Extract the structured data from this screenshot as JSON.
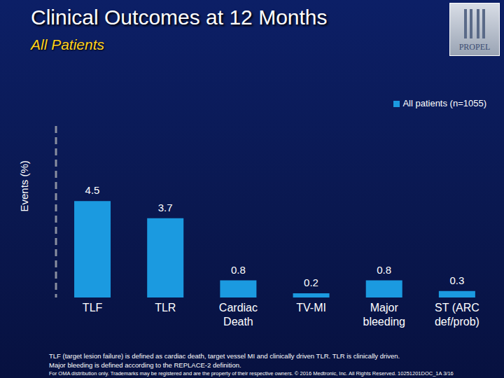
{
  "chart_data": {
    "type": "bar",
    "title": "Clinical Outcomes at 12 Months",
    "subtitle": "All Patients",
    "ylabel": "Events (%)",
    "categories": [
      "TLF",
      "TLR",
      "Cardiac Death",
      "TV-MI",
      "Major bleeding",
      "ST (ARC def/prob)"
    ],
    "series": [
      {
        "name": "All patients (n=1055)",
        "color": "#1b9ae0",
        "values": [
          4.5,
          3.7,
          0.8,
          0.2,
          0.8,
          0.3
        ]
      }
    ],
    "ylim": [
      0,
      8
    ],
    "data_labels": true,
    "tick_labels": "x",
    "grid": false,
    "legend": "upper right"
  },
  "logo": "PROPEL",
  "footnotes": [
    "TLF (target lesion failure) is defined as cardiac death, target vessel MI and clinically driven TLR. TLR is clinically driven.",
    "Major bleeding is defined according to the REPLACE-2 definition."
  ],
  "copyright": "For OMA distribution only. Trademarks may be registered and are the property of their respective owners. © 2016 Medtronic, Inc. All Rights Reserved. 10251201DOC_1A 3/16"
}
